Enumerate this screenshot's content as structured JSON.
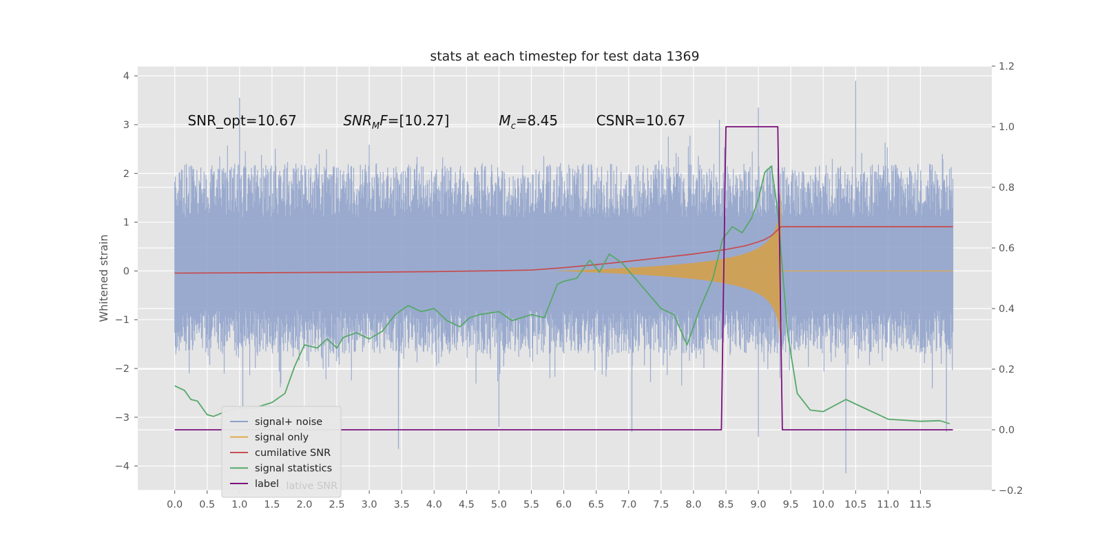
{
  "chart_data": {
    "type": "line",
    "title": "stats at each timestep for test data 1369",
    "ylabel": "Whitened strain",
    "xlabel": "",
    "xlim": [
      -0.57,
      12.6
    ],
    "ylim": [
      -4.5,
      4.2
    ],
    "y2lim": [
      -0.2,
      1.2
    ],
    "xticks": [
      "0.0",
      "0.5",
      "1.0",
      "1.5",
      "2.0",
      "2.5",
      "3.0",
      "3.5",
      "4.0",
      "4.5",
      "5.0",
      "5.5",
      "6.0",
      "6.5",
      "7.0",
      "7.5",
      "8.0",
      "8.5",
      "9.0",
      "9.5",
      "10.0",
      "10.5",
      "11.0",
      "11.5"
    ],
    "yticks": [
      "4",
      "3",
      "2",
      "1",
      "0",
      "−1",
      "−2",
      "−3",
      "−4"
    ],
    "y2ticks": [
      "1.2",
      "1.0",
      "0.8",
      "0.6",
      "0.4",
      "0.2",
      "0.0",
      "−0.2"
    ],
    "grid": true,
    "legend_position": "bottom-left",
    "annotations": [
      {
        "text": "SNR_opt=10.67",
        "x": 0.2,
        "y": 3.1
      },
      {
        "text": "SNR",
        "sub": "M",
        "tail": "F=[10.27]",
        "italic_head": true,
        "x": 2.6,
        "y": 3.1
      },
      {
        "text": "M",
        "sub": "c",
        "tail": "=8.45",
        "italic_head": true,
        "x": 5.0,
        "y": 3.1
      },
      {
        "text": "CSNR=10.67",
        "x": 6.5,
        "y": 3.1
      }
    ],
    "legend_ghost_text": "cumilative SNR",
    "series": [
      {
        "name": "signal+ noise",
        "axis": "left",
        "color": "#8da0cb",
        "kind": "noise",
        "x_range": [
          0.0,
          12.0
        ],
        "typical_range": [
          -1.7,
          2.2
        ],
        "extremes": [
          {
            "x": 1.0,
            "y": 3.55
          },
          {
            "x": 1.05,
            "y": -2.95
          },
          {
            "x": 3.45,
            "y": -3.65
          },
          {
            "x": 5.0,
            "y": -3.2
          },
          {
            "x": 7.05,
            "y": -3.3
          },
          {
            "x": 9.0,
            "y": 3.35
          },
          {
            "x": 9.0,
            "y": -3.4
          },
          {
            "x": 10.5,
            "y": 3.9
          },
          {
            "x": 10.35,
            "y": -4.15
          },
          {
            "x": 11.9,
            "y": -3.3
          },
          {
            "x": 8.4,
            "y": 3.1
          }
        ]
      },
      {
        "name": "signal only",
        "axis": "left",
        "color": "#e0a84a",
        "kind": "chirp",
        "x_range": [
          5.0,
          9.35
        ],
        "peak_amplitude": 2.2,
        "after_value": 0.0
      },
      {
        "name": "cumilative SNR",
        "axis": "right",
        "color": "#c44e52",
        "x": [
          0,
          1,
          2,
          3,
          4,
          5,
          5.5,
          6,
          6.5,
          7,
          7.5,
          8,
          8.5,
          8.8,
          9.0,
          9.1,
          9.2,
          9.3,
          9.35,
          12.0
        ],
        "y": [
          0.517,
          0.518,
          0.519,
          0.52,
          0.522,
          0.525,
          0.527,
          0.535,
          0.545,
          0.556,
          0.568,
          0.58,
          0.595,
          0.607,
          0.62,
          0.628,
          0.64,
          0.66,
          0.67,
          0.67
        ]
      },
      {
        "name": "signal statistics",
        "axis": "right",
        "color": "#55a868",
        "x": [
          0,
          0.15,
          0.25,
          0.35,
          0.5,
          0.6,
          0.8,
          1.0,
          1.2,
          1.5,
          1.7,
          1.85,
          2.0,
          2.2,
          2.35,
          2.5,
          2.6,
          2.8,
          3.0,
          3.2,
          3.4,
          3.6,
          3.8,
          4.0,
          4.2,
          4.4,
          4.55,
          4.7,
          5.0,
          5.2,
          5.5,
          5.7,
          5.9,
          6.0,
          6.2,
          6.4,
          6.55,
          6.7,
          6.9,
          7.1,
          7.3,
          7.5,
          7.7,
          7.9,
          8.1,
          8.3,
          8.45,
          8.6,
          8.75,
          8.9,
          9.0,
          9.1,
          9.2,
          9.3,
          9.45,
          9.6,
          9.8,
          10.0,
          10.35,
          10.6,
          11.0,
          11.5,
          11.8,
          11.95
        ],
        "y": [
          0.145,
          0.13,
          0.1,
          0.095,
          0.05,
          0.044,
          0.062,
          0.072,
          0.07,
          0.09,
          0.12,
          0.21,
          0.28,
          0.27,
          0.3,
          0.27,
          0.305,
          0.32,
          0.3,
          0.325,
          0.38,
          0.41,
          0.39,
          0.4,
          0.36,
          0.34,
          0.37,
          0.38,
          0.39,
          0.36,
          0.38,
          0.37,
          0.48,
          0.49,
          0.5,
          0.56,
          0.52,
          0.58,
          0.55,
          0.5,
          0.45,
          0.4,
          0.38,
          0.28,
          0.4,
          0.5,
          0.63,
          0.67,
          0.65,
          0.7,
          0.76,
          0.85,
          0.87,
          0.72,
          0.32,
          0.12,
          0.065,
          0.06,
          0.1,
          0.075,
          0.035,
          0.028,
          0.03,
          0.02
        ]
      },
      {
        "name": "label",
        "axis": "right",
        "color": "#7b0f7b",
        "x": [
          0,
          8.43,
          8.5,
          9.3,
          9.37,
          12.0
        ],
        "y": [
          0.0,
          0.0,
          1.0,
          1.0,
          0.0,
          0.0
        ]
      }
    ]
  }
}
